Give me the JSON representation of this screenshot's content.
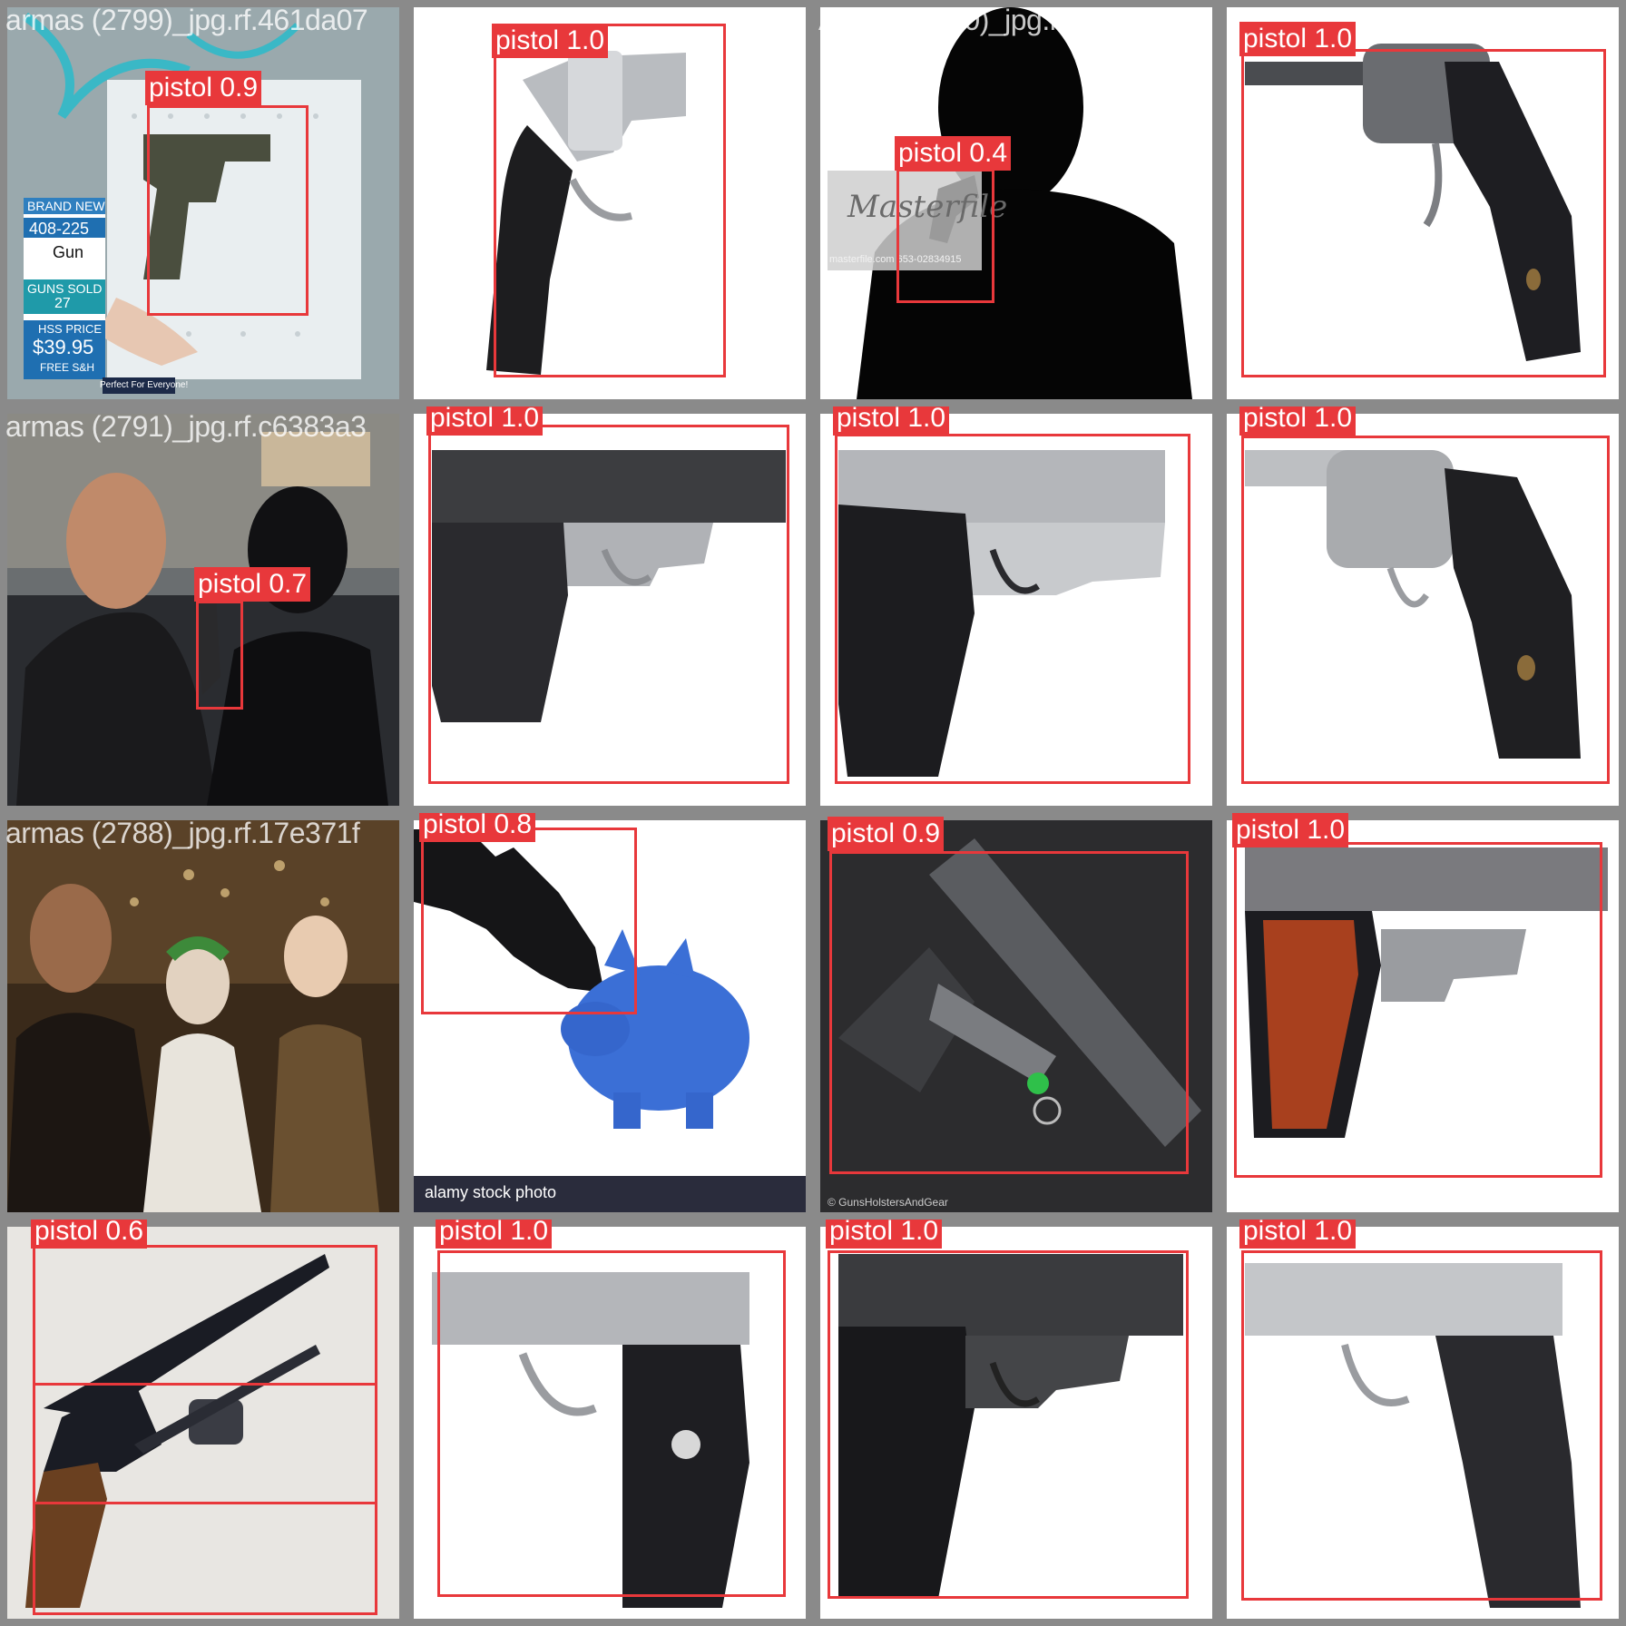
{
  "colors": {
    "box": "#e8383b",
    "label_text": "#ffffff",
    "tile_border": "#8a8a8a"
  },
  "tiles": [
    {
      "filename": "armas (2799)_jpg.rf.461da07",
      "class": "pistol",
      "score": "0.9",
      "label": "pistol 0.9",
      "overlay": {
        "brand_new": "BRAND NEW",
        "item": "408-225",
        "gun": "Gun",
        "guns_sold": "GUNS SOLD",
        "sold_count": "27",
        "hss_price": "HSS PRICE",
        "price": "$39.95",
        "shipping": "FREE S&H",
        "tagline": "Perfect For Everyone!"
      }
    },
    {
      "filename": "",
      "class": "pistol",
      "score": "1.0",
      "label": "pistol 1.0"
    },
    {
      "filename": "Armas (2810)_jpg.rf.0da3f52",
      "class": "pistol",
      "score": "0.4",
      "label": "pistol 0.4",
      "overlay": {
        "watermark": "Masterfile",
        "stock_id": "masterfile.com 653-02834915"
      }
    },
    {
      "filename": "",
      "class": "pistol",
      "score": "1.0",
      "label": "pistol 1.0"
    },
    {
      "filename": "armas (2791)_jpg.rf.c6383a3",
      "class": "pistol",
      "score": "0.7",
      "label": "pistol 0.7"
    },
    {
      "filename": "",
      "class": "pistol",
      "score": "1.0",
      "label": "pistol 1.0"
    },
    {
      "filename": "",
      "class": "pistol",
      "score": "1.0",
      "label": "pistol 1.0"
    },
    {
      "filename": "",
      "class": "pistol",
      "score": "1.0",
      "label": "pistol 1.0"
    },
    {
      "filename": "armas (2788)_jpg.rf.17e371f",
      "class": "pistol",
      "score": "",
      "label": ""
    },
    {
      "filename": "",
      "class": "pistol",
      "score": "0.8",
      "label": "pistol 0.8",
      "overlay": {
        "stock": "alamy stock photo"
      }
    },
    {
      "filename": "",
      "class": "pistol",
      "score": "0.9",
      "label": "pistol 0.9",
      "overlay": {
        "credit": "© GunsHolstersAndGear"
      }
    },
    {
      "filename": "",
      "class": "pistol",
      "score": "1.0",
      "label": "pistol 1.0"
    },
    {
      "filename": "",
      "class": "pistol",
      "score": "0.6",
      "label": "pistol 0.6"
    },
    {
      "filename": "",
      "class": "pistol",
      "score": "1.0",
      "label": "pistol 1.0"
    },
    {
      "filename": "",
      "class": "pistol",
      "score": "1.0",
      "label": "pistol 1.0"
    },
    {
      "filename": "",
      "class": "pistol",
      "score": "1.0",
      "label": "pistol 1.0"
    }
  ]
}
